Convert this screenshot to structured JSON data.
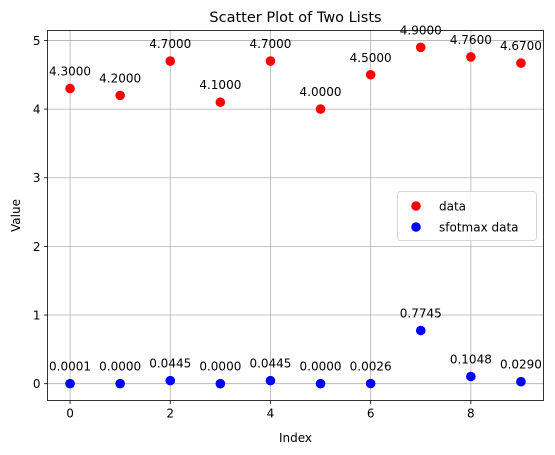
{
  "chart_data": {
    "type": "scatter",
    "title": "Scatter Plot of Two Lists",
    "xlabel": "Index",
    "ylabel": "Value",
    "xlim": [
      -0.45,
      9.45
    ],
    "ylim": [
      -0.245,
      5.145
    ],
    "xticks": [
      0,
      2,
      4,
      6,
      8
    ],
    "yticks": [
      0,
      1,
      2,
      3,
      4,
      5
    ],
    "grid": true,
    "legend_position": "center-right",
    "series": [
      {
        "name": "data",
        "color": "#ff0000",
        "x": [
          0,
          1,
          2,
          3,
          4,
          5,
          6,
          7,
          8,
          9
        ],
        "y": [
          4.3,
          4.2,
          4.7,
          4.1,
          4.7,
          4.0,
          4.5,
          4.9,
          4.76,
          4.67
        ],
        "labels": [
          "4.3000",
          "4.2000",
          "4.7000",
          "4.1000",
          "4.7000",
          "4.0000",
          "4.5000",
          "4.9000",
          "4.7600",
          "4.6700"
        ]
      },
      {
        "name": "sfotmax data",
        "color": "#0000ff",
        "x": [
          0,
          1,
          2,
          3,
          4,
          5,
          6,
          7,
          8,
          9
        ],
        "y": [
          0.0001,
          0.0,
          0.0445,
          0.0,
          0.0445,
          0.0,
          0.0026,
          0.7745,
          0.1048,
          0.029
        ],
        "labels": [
          "0.0001",
          "0.0000",
          "0.0445",
          "0.0000",
          "0.0445",
          "0.0000",
          "0.0026",
          "0.7745",
          "0.1048",
          "0.0290"
        ]
      }
    ]
  }
}
